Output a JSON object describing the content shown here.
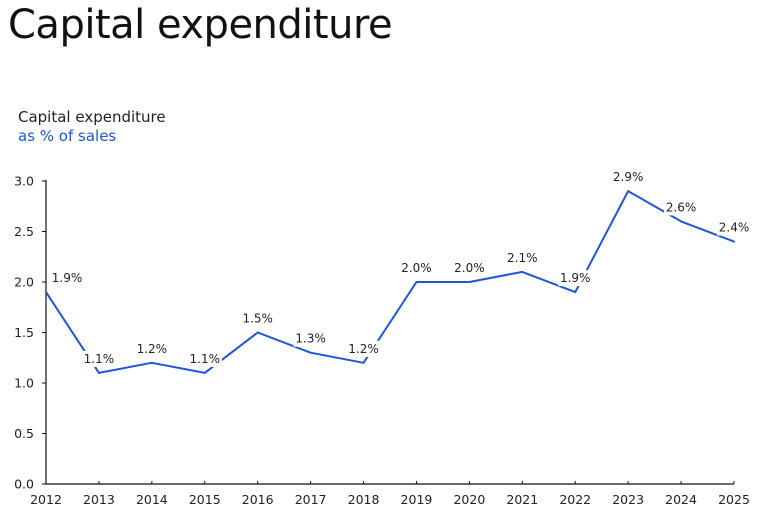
{
  "title": "Capital expenditure",
  "colors": {
    "line": "#1f56d6",
    "subtitle": "#1f56d6",
    "axis": "#111111"
  },
  "chart_data": {
    "type": "line",
    "title": "Capital expenditure",
    "subtitle_line1": "Capital expenditure",
    "subtitle_line2": "as % of sales",
    "x": [
      "2012",
      "2013",
      "2014",
      "2015",
      "2016",
      "2017",
      "2018",
      "2019",
      "2020",
      "2021",
      "2022",
      "2023",
      "2024",
      "2025"
    ],
    "values": [
      1.9,
      1.1,
      1.2,
      1.1,
      1.5,
      1.3,
      1.2,
      2.0,
      2.0,
      2.1,
      1.9,
      2.9,
      2.6,
      2.4
    ],
    "data_labels": [
      "1.9%",
      "1.1%",
      "1.2%",
      "1.1%",
      "1.5%",
      "1.3%",
      "1.2%",
      "2.0%",
      "2.0%",
      "2.1%",
      "1.9%",
      "2.9%",
      "2.6%",
      "2.4%"
    ],
    "yticks": [
      "0.0",
      "0.5",
      "1.0",
      "1.5",
      "2.0",
      "2.5",
      "3.0"
    ],
    "ylim": [
      0,
      3.0
    ],
    "grid": false,
    "legend": "none"
  }
}
